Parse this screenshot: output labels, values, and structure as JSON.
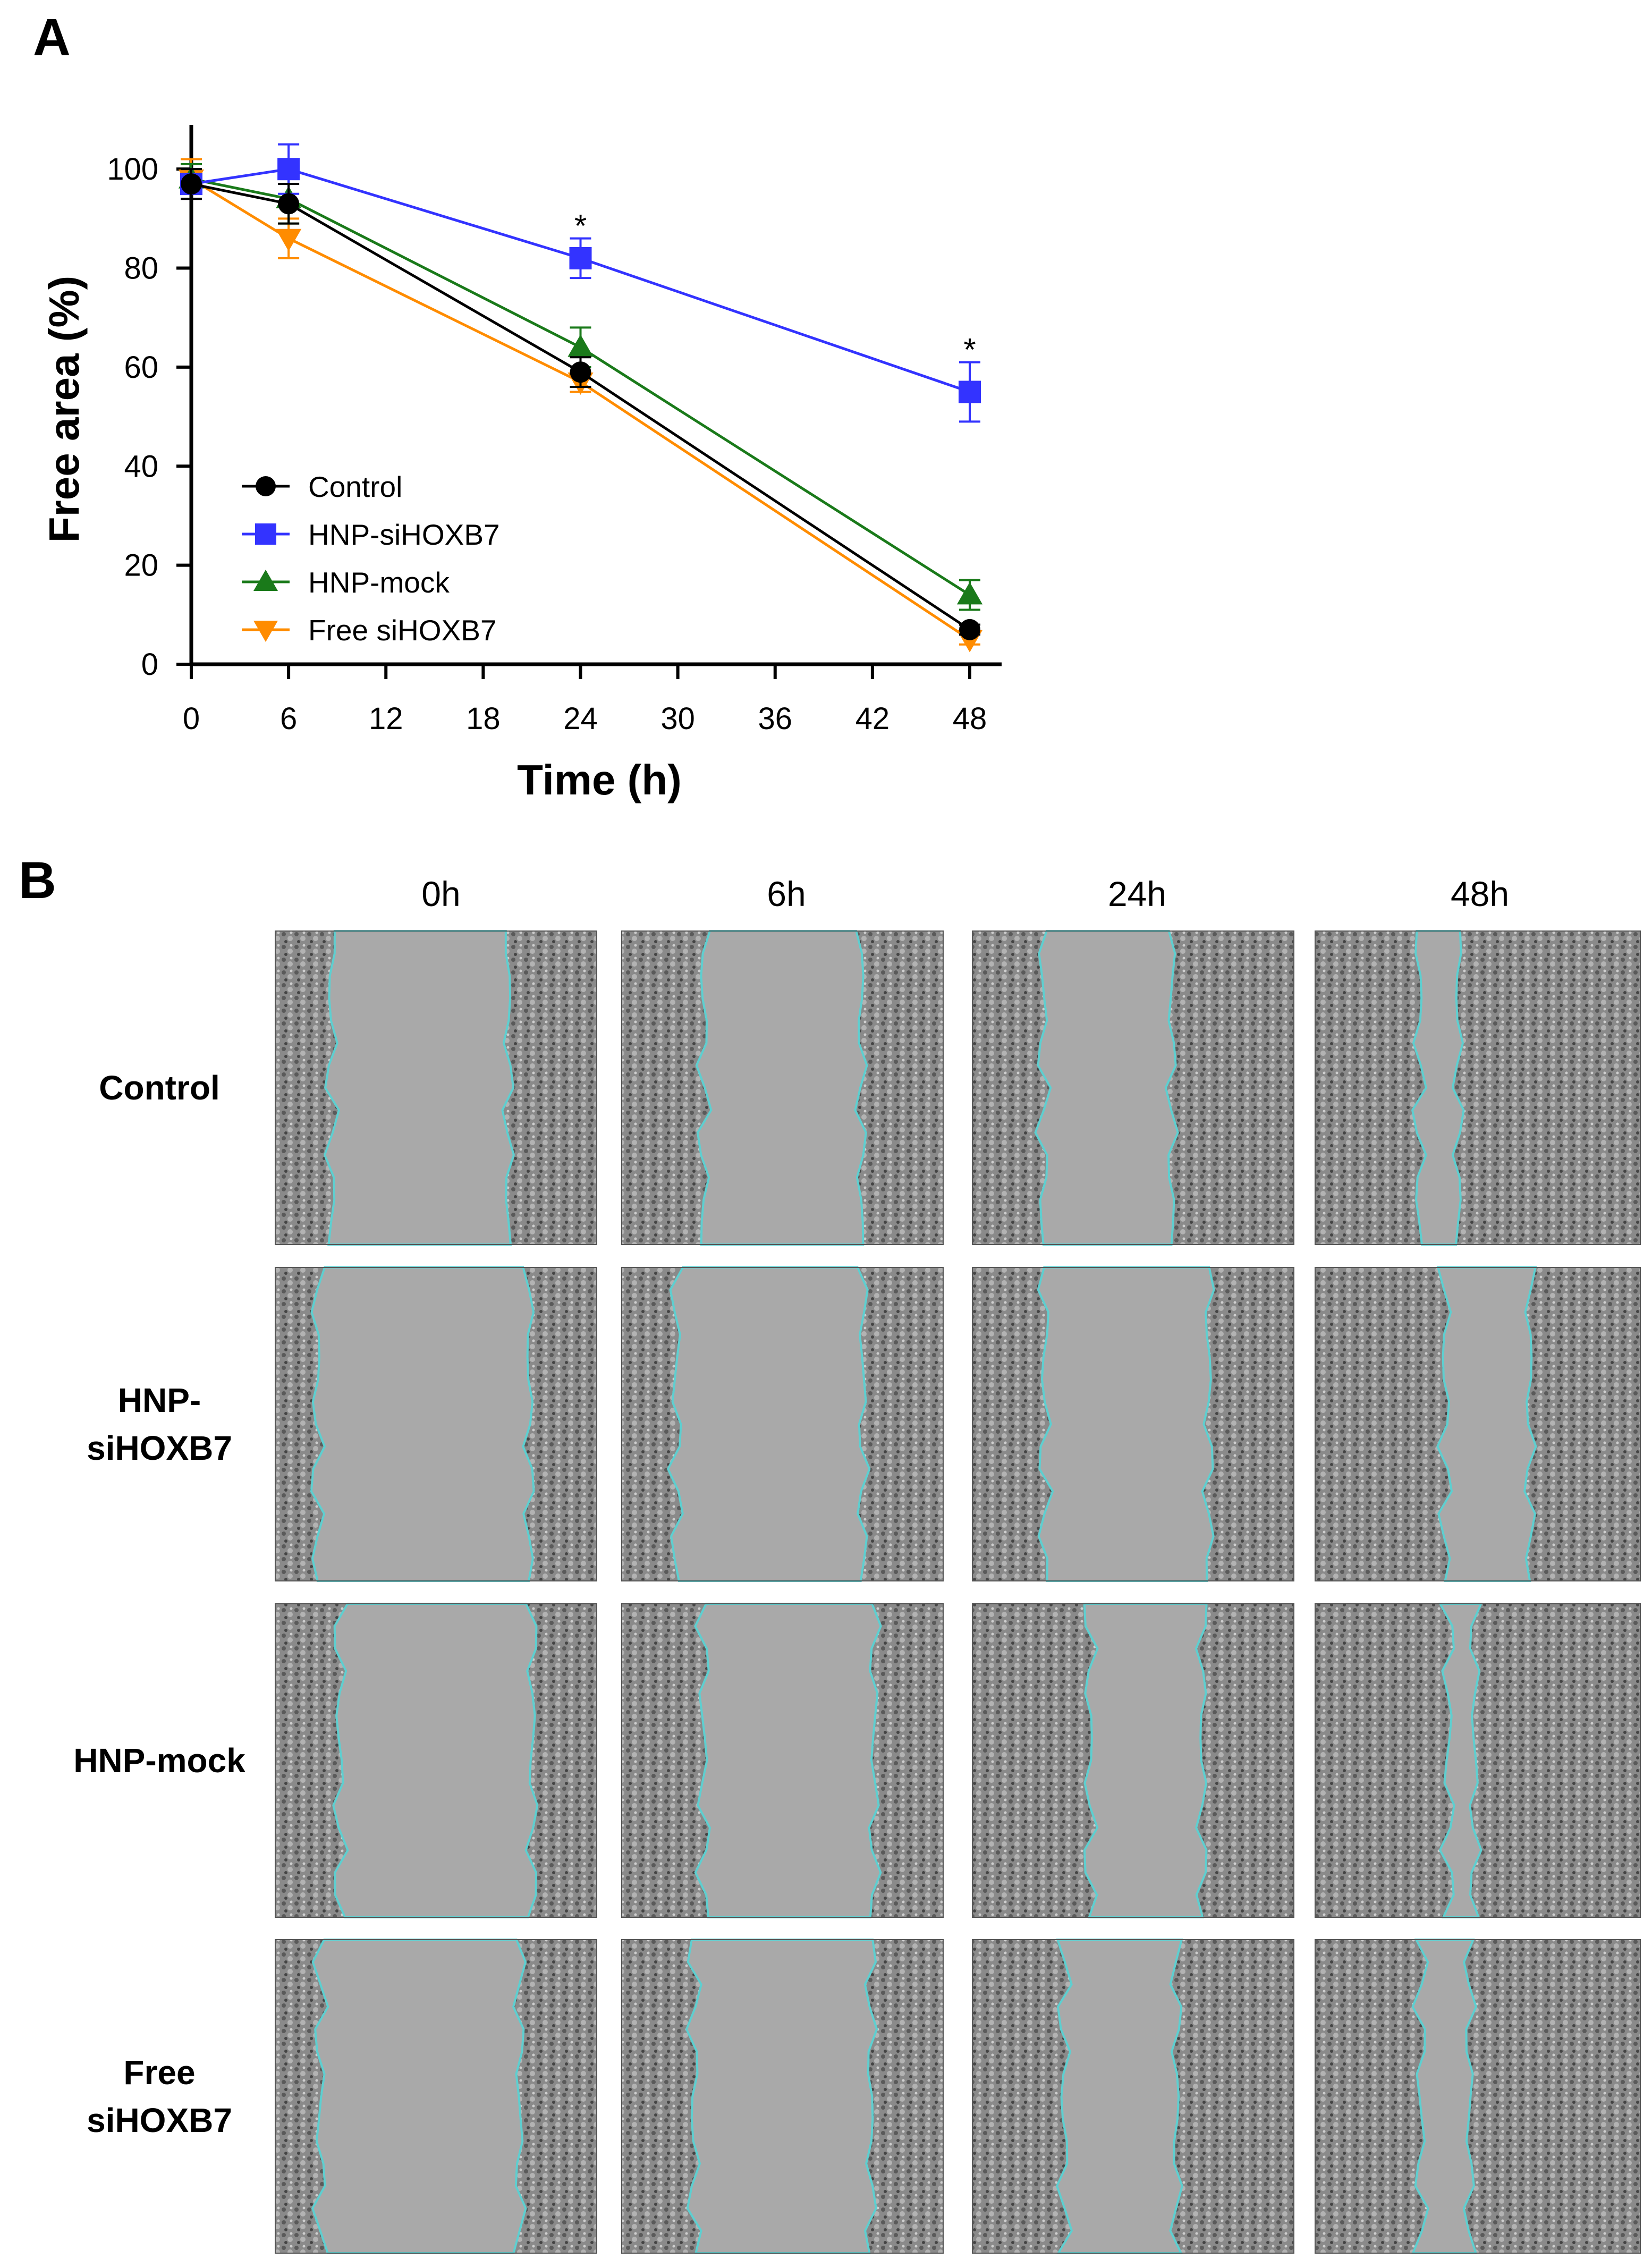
{
  "panel_a": {
    "letter": "A"
  },
  "panel_b": {
    "letter": "B",
    "columns": [
      "0h",
      "6h",
      "24h",
      "48h"
    ],
    "rows": [
      {
        "lines": [
          "Control"
        ]
      },
      {
        "lines": [
          "HNP-",
          "siHOXB7"
        ]
      },
      {
        "lines": [
          "HNP-mock"
        ]
      },
      {
        "lines": [
          "Free",
          "siHOXB7"
        ]
      }
    ],
    "outline_color": "#5ecfd0",
    "image_description": "Phase-contrast micrographs of scratch wound assay with wound edges outlined in cyan"
  },
  "chart_data": {
    "type": "line",
    "xlabel": "Time (h)",
    "ylabel": "Free area (%)",
    "xlim": [
      0,
      48
    ],
    "ylim": [
      0,
      110
    ],
    "x_ticks": [
      0,
      6,
      12,
      18,
      24,
      30,
      36,
      42,
      48
    ],
    "y_ticks": [
      0,
      20,
      40,
      60,
      80,
      100
    ],
    "grid": false,
    "legend_position": "bottom-left",
    "x": [
      0,
      6,
      24,
      48
    ],
    "series": [
      {
        "name": "Control",
        "color": "#000000",
        "marker": "circle",
        "values": [
          97,
          93,
          59,
          7
        ],
        "errors": [
          3,
          4,
          3,
          1
        ]
      },
      {
        "name": "HNP-siHOXB7",
        "color": "#3333ff",
        "marker": "square",
        "values": [
          97,
          100,
          82,
          55
        ],
        "errors": [
          3,
          5,
          4,
          6
        ]
      },
      {
        "name": "HNP-mock",
        "color": "#1a7a1a",
        "marker": "triangle-up",
        "values": [
          98,
          94,
          64,
          14
        ],
        "errors": [
          3,
          5,
          4,
          3
        ]
      },
      {
        "name": "Free siHOXB7",
        "color": "#ff8c00",
        "marker": "triangle-down",
        "values": [
          98,
          86,
          57,
          5
        ],
        "errors": [
          4,
          4,
          2,
          1
        ]
      }
    ],
    "annotations": [
      {
        "text": "*",
        "x": 24,
        "y": 89
      },
      {
        "text": "*",
        "x": 48,
        "y": 64
      }
    ]
  }
}
